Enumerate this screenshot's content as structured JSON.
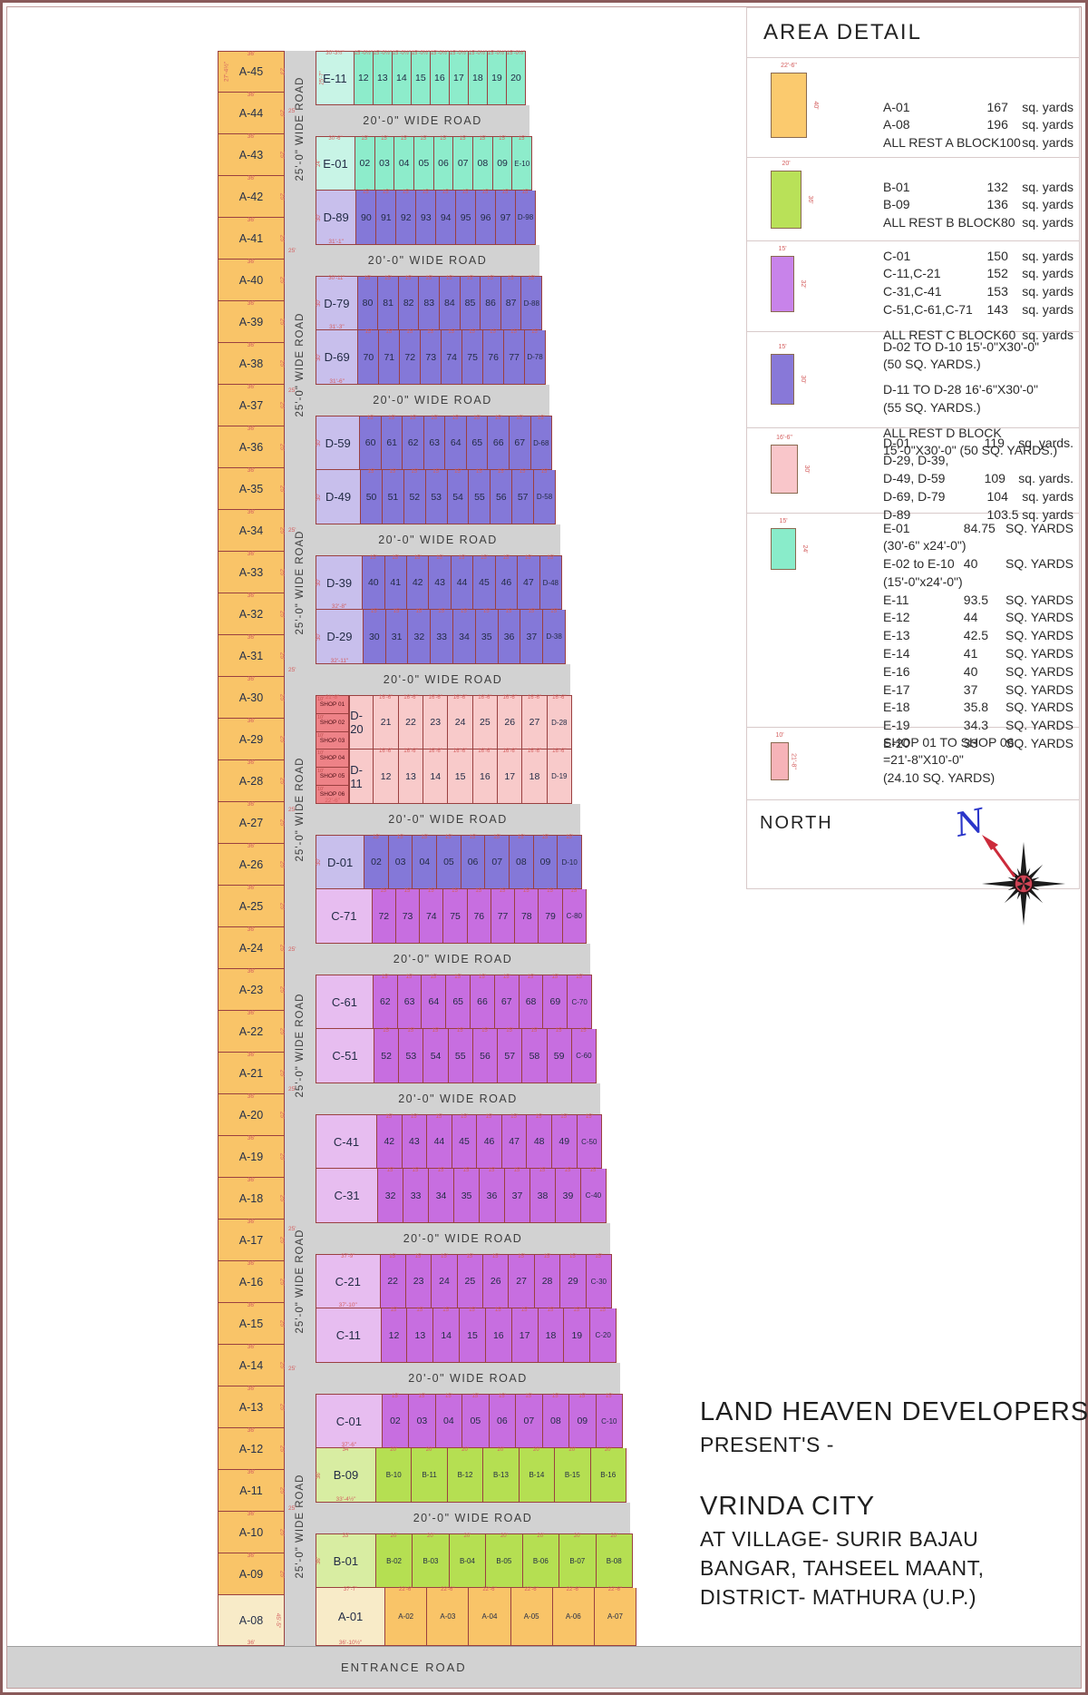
{
  "area_detail": {
    "title": "AREA DETAIL",
    "north_label": "NORTH",
    "sections": [
      {
        "name": "a-block",
        "color": "#fbca6e",
        "top_dim": "22'-6\"",
        "side_dim": "40'",
        "rows": [
          [
            "A-01",
            "167",
            "sq. yards"
          ],
          [
            "A-08",
            "196",
            "sq. yards"
          ],
          [
            "ALL REST A BLOCK",
            "100",
            "sq. yards"
          ]
        ]
      },
      {
        "name": "b-block",
        "color": "#b9e158",
        "top_dim": "20'",
        "side_dim": "36'",
        "rows": [
          [
            "B-01",
            "132",
            "sq. yards"
          ],
          [
            "B-09",
            "136",
            "sq. yards"
          ],
          [
            "ALL REST B BLOCK",
            "80",
            "sq. yards"
          ]
        ]
      },
      {
        "name": "c-block",
        "color": "#c883ea",
        "top_dim": "15'",
        "side_dim": "32'",
        "rows": [
          [
            "C-01",
            "150",
            "sq. yards"
          ],
          [
            "C-11,C-21",
            "152",
            "sq. yards"
          ],
          [
            "C-31,C-41",
            "153",
            "sq. yards"
          ],
          [
            "C-51,C-61,C-71",
            "143",
            "sq. yards"
          ],
          [
            "",
            "",
            ""
          ],
          [
            "ALL REST C BLOCK",
            "60",
            "sq. yards"
          ]
        ]
      },
      {
        "name": "d-block",
        "color": "#8878d8",
        "top_dim": "15'",
        "side_dim": "30'",
        "rows": [
          [
            "D-02 TO D-10  15'-0\"X30'-0\"",
            "",
            ""
          ],
          [
            "(50 SQ. YARDS.)",
            "",
            ""
          ],
          [
            "",
            "",
            ""
          ],
          [
            "D-11 TO D-28  16'-6\"X30'-0\"",
            "",
            ""
          ],
          [
            "(55 SQ. YARDS.)",
            "",
            ""
          ],
          [
            "",
            "",
            ""
          ],
          [
            "ALL REST D BLOCK",
            "",
            ""
          ],
          [
            "15'-0\"X30'-0\"   (50 SQ. YARDS.)",
            "",
            ""
          ]
        ]
      },
      {
        "name": "d-pink",
        "color": "#f9c6ca",
        "top_dim": "16'-6\"",
        "side_dim": "30'",
        "rows": [
          [
            "D-01",
            "119",
            "sq. yards."
          ],
          [
            "D-29, D-39,",
            "",
            ""
          ],
          [
            "D-49, D-59",
            "109",
            "sq. yards."
          ],
          [
            "D-69, D-79",
            "104",
            "sq. yards"
          ],
          [
            "D-89",
            "103.5",
            "sq. yards"
          ]
        ]
      },
      {
        "name": "e-block",
        "color": "#89ecca",
        "top_dim": "15'",
        "side_dim": "24'",
        "rows": [
          [
            "E-01",
            "84.75",
            "SQ. YARDS"
          ],
          [
            "  (30'-6\"  x24'-0\")",
            "",
            ""
          ],
          [
            "E-02 to E-10",
            "40",
            "SQ. YARDS"
          ],
          [
            "  (15'-0\"x24'-0\")",
            "",
            ""
          ],
          [
            "E-11",
            "93.5",
            "SQ. YARDS"
          ],
          [
            "E-12",
            "44",
            "SQ. YARDS"
          ],
          [
            "E-13",
            "42.5",
            "SQ. YARDS"
          ],
          [
            "E-14",
            "41",
            "SQ. YARDS"
          ],
          [
            "E-16",
            "40",
            "SQ. YARDS"
          ],
          [
            "E-17",
            "37",
            "SQ. YARDS"
          ],
          [
            "E-18",
            "35.8",
            "SQ. YARDS"
          ],
          [
            "E-19",
            "34.3",
            "SQ. YARDS"
          ],
          [
            "E-20",
            "33",
            "SQ. YARDS"
          ]
        ]
      },
      {
        "name": "shops",
        "color": "#f6b3b8",
        "top_dim": "10'",
        "side_dim": "21'-8\"",
        "rows": [
          [
            "SHOP 01 TO SHOP 06",
            "",
            ""
          ],
          [
            "=21'-8\"X10'-0\"",
            "",
            ""
          ],
          [
            "(24.10 SQ. YARDS)",
            "",
            ""
          ]
        ]
      }
    ]
  },
  "map": {
    "h_road_label": "20'-0\" WIDE ROAD",
    "v_road_label": "25'-0\" WIDE ROAD",
    "entrance_label": "ENTRANCE ROAD",
    "junction_dim": "25'",
    "palettes": {
      "e": {
        "first": "#c8f4e6",
        "cell": "#8deccb"
      },
      "d": {
        "first": "#c8bfec",
        "cell": "#8478d8"
      },
      "c": {
        "first": "#e7bdf0",
        "cell": "#c76ee0"
      },
      "pink": {
        "first": "#f8caca",
        "cell": "#f8caca"
      },
      "b": {
        "first": "#d8eda2",
        "cell": "#b5df52"
      },
      "aRow": {
        "first": "#f8ebc8",
        "cell": "#f9c468"
      },
      "shop": "#ee8287"
    },
    "a_column": {
      "top_dim": "36'",
      "side_dim": "25'",
      "a45_side": "23'",
      "a45_left": "27'-4½\"",
      "labels": [
        "A-45",
        "A-44",
        "A-43",
        "A-42",
        "A-41",
        "A-40",
        "A-39",
        "A-38",
        "A-37",
        "A-36",
        "A-35",
        "A-34",
        "A-33",
        "A-32",
        "A-31",
        "A-30",
        "A-29",
        "A-28",
        "A-27",
        "A-26",
        "A-25",
        "A-24",
        "A-23",
        "A-22",
        "A-21",
        "A-20",
        "A-19",
        "A-18",
        "A-17",
        "A-16",
        "A-15",
        "A-14",
        "A-13",
        "A-12",
        "A-11",
        "A-10",
        "A-09"
      ],
      "last": {
        "label": "A-08",
        "side_dim": "45'-5\"",
        "bottom_dim": "36'"
      }
    },
    "blocks": [
      {
        "kind": "rows",
        "rows": [
          {
            "first": "E-11",
            "cells": [
              "12",
              "13",
              "14",
              "15",
              "16",
              "17",
              "18",
              "19",
              "20"
            ],
            "palette": "e",
            "first_ft": 30.5,
            "cell_ft": 15,
            "top_dim": "30'-3½\"",
            "cell_dim": "15'-0½\"",
            "side_dim": "25'-7\""
          }
        ]
      },
      {
        "kind": "road"
      },
      {
        "kind": "rows",
        "rows": [
          {
            "first": "E-01",
            "cells": [
              "02",
              "03",
              "04",
              "05",
              "06",
              "07",
              "08",
              "09",
              "E-10"
            ],
            "palette": "e",
            "first_ft": 30.5,
            "cell_ft": 15,
            "top_dim": "30'-6\"",
            "cell_dim": "15'",
            "side_dim": "24'"
          },
          {
            "first": "D-89",
            "cells": [
              "90",
              "91",
              "92",
              "93",
              "94",
              "95",
              "96",
              "97",
              "D-98"
            ],
            "palette": "d",
            "first_ft": 31,
            "cell_ft": 15,
            "cell_dim": "15'",
            "bottom_dim": "31'-1\"",
            "side_dim": "30'"
          }
        ]
      },
      {
        "kind": "road"
      },
      {
        "kind": "rows",
        "rows": [
          {
            "first": "D-79",
            "cells": [
              "80",
              "81",
              "82",
              "83",
              "84",
              "85",
              "86",
              "87",
              "D-88"
            ],
            "palette": "d",
            "first_ft": 31,
            "cell_ft": 15,
            "top_dim": "30'-11\"",
            "cell_dim": "15'",
            "bottom_dim": "31'-3\"",
            "side_dim": "30'"
          },
          {
            "first": "D-69",
            "cells": [
              "70",
              "71",
              "72",
              "73",
              "74",
              "75",
              "76",
              "77",
              "D-78"
            ],
            "palette": "d",
            "first_ft": 31,
            "cell_ft": 15,
            "cell_dim": "15'",
            "bottom_dim": "31'-6\"",
            "side_dim": "30'"
          }
        ]
      },
      {
        "kind": "road"
      },
      {
        "kind": "rows",
        "rows": [
          {
            "first": "D-59",
            "cells": [
              "60",
              "61",
              "62",
              "63",
              "64",
              "65",
              "66",
              "67",
              "D-68"
            ],
            "palette": "d",
            "first_ft": 31.5,
            "cell_ft": 15,
            "cell_dim": "15'",
            "side_dim": "30'"
          },
          {
            "first": "D-49",
            "cells": [
              "50",
              "51",
              "52",
              "53",
              "54",
              "55",
              "56",
              "57",
              "D-58"
            ],
            "palette": "d",
            "first_ft": 31.5,
            "cell_ft": 15,
            "cell_dim": "15'",
            "side_dim": "30'"
          }
        ]
      },
      {
        "kind": "road"
      },
      {
        "kind": "rows",
        "rows": [
          {
            "first": "D-39",
            "cells": [
              "40",
              "41",
              "42",
              "43",
              "44",
              "45",
              "46",
              "47",
              "D-48"
            ],
            "palette": "d",
            "first_ft": 32,
            "cell_ft": 15,
            "cell_dim": "15'",
            "bottom_dim": "32'-8\"",
            "side_dim": "30'"
          },
          {
            "first": "D-29",
            "cells": [
              "30",
              "31",
              "32",
              "33",
              "34",
              "35",
              "36",
              "37",
              "D-38"
            ],
            "palette": "d",
            "first_ft": 32,
            "cell_ft": 15,
            "cell_dim": "15'",
            "bottom_dim": "32'-11\"",
            "side_dim": "30'"
          }
        ]
      },
      {
        "kind": "road"
      },
      {
        "kind": "shops",
        "shops": [
          "SHOP 01",
          "SHOP 02",
          "SHOP 03",
          "SHOP 04",
          "SHOP 05",
          "SHOP 06"
        ],
        "top_dim": "21'-8\"",
        "bottom_dim": "22'-6\"",
        "side_dim": "10'",
        "shop_ft": 22.5,
        "rows": [
          {
            "first": "D-20",
            "cells": [
              "21",
              "22",
              "23",
              "24",
              "25",
              "26",
              "27",
              "D-28"
            ],
            "palette": "pink",
            "first_ft": 16.5,
            "cell_ft": 16.5,
            "cell_dim": "16'-6\""
          },
          {
            "first": "D-11",
            "cells": [
              "12",
              "13",
              "14",
              "15",
              "16",
              "17",
              "18",
              "D-19"
            ],
            "palette": "pink",
            "first_ft": 16.5,
            "cell_ft": 16.5,
            "cell_dim": "16'-6\""
          }
        ]
      },
      {
        "kind": "road"
      },
      {
        "kind": "rows",
        "rows": [
          {
            "first": "D-01",
            "cells": [
              "02",
              "03",
              "04",
              "05",
              "06",
              "07",
              "08",
              "09",
              "D-10"
            ],
            "palette": "d",
            "first_ft": 30.5,
            "cell_ft": 15,
            "cell_dim": "15'",
            "side_dim": "30'"
          },
          {
            "first": "C-71",
            "cells": [
              "72",
              "73",
              "74",
              "75",
              "76",
              "77",
              "78",
              "79",
              "C-80"
            ],
            "palette": "c",
            "first_ft": 35.8,
            "cell_ft": 15,
            "cell_dim": "15'"
          }
        ]
      },
      {
        "kind": "road"
      },
      {
        "kind": "rows",
        "rows": [
          {
            "first": "C-61",
            "cells": [
              "62",
              "63",
              "64",
              "65",
              "66",
              "67",
              "68",
              "69",
              "C-70"
            ],
            "palette": "c",
            "first_ft": 35.8,
            "cell_ft": 15,
            "cell_dim": "15'"
          },
          {
            "first": "C-51",
            "cells": [
              "52",
              "53",
              "54",
              "55",
              "56",
              "57",
              "58",
              "59",
              "C-60"
            ],
            "palette": "c",
            "first_ft": 35.8,
            "cell_ft": 15,
            "cell_dim": "15'"
          }
        ]
      },
      {
        "kind": "road"
      },
      {
        "kind": "rows",
        "rows": [
          {
            "first": "C-41",
            "cells": [
              "42",
              "43",
              "44",
              "45",
              "46",
              "47",
              "48",
              "49",
              "C-50"
            ],
            "palette": "c",
            "first_ft": 37,
            "cell_ft": 15,
            "cell_dim": "15'"
          },
          {
            "first": "C-31",
            "cells": [
              "32",
              "33",
              "34",
              "35",
              "36",
              "37",
              "38",
              "39",
              "C-40"
            ],
            "palette": "c",
            "first_ft": 37,
            "cell_ft": 15,
            "cell_dim": "15'"
          }
        ]
      },
      {
        "kind": "road"
      },
      {
        "kind": "rows",
        "rows": [
          {
            "first": "C-21",
            "cells": [
              "22",
              "23",
              "24",
              "25",
              "26",
              "27",
              "28",
              "29",
              "C-30"
            ],
            "palette": "c",
            "first_ft": 37.8,
            "cell_ft": 15,
            "top_dim": "37'-9\"",
            "cell_dim": "15'",
            "bottom_dim": "37'-10\""
          },
          {
            "first": "C-11",
            "cells": [
              "12",
              "13",
              "14",
              "15",
              "16",
              "17",
              "18",
              "19",
              "C-20"
            ],
            "palette": "c",
            "first_ft": 37.8,
            "cell_ft": 15,
            "cell_dim": "15'"
          }
        ]
      },
      {
        "kind": "road"
      },
      {
        "kind": "rows",
        "rows": [
          {
            "first": "C-01",
            "cells": [
              "02",
              "03",
              "04",
              "05",
              "06",
              "07",
              "08",
              "09",
              "C-10"
            ],
            "palette": "c",
            "first_ft": 37.5,
            "cell_ft": 15,
            "cell_dim": "15'",
            "bottom_dim": "37'-6\""
          },
          {
            "first": "B-09",
            "cells": [
              "B-10",
              "B-11",
              "B-12",
              "B-13",
              "B-14",
              "B-15",
              "B-16"
            ],
            "palette": "b",
            "first_ft": 34,
            "cell_ft": 20,
            "top_dim": "34'",
            "cell_dim": "20'",
            "bottom_dim": "33'-4½\"",
            "side_dim": "36'"
          }
        ]
      },
      {
        "kind": "road"
      },
      {
        "kind": "rows",
        "rows": [
          {
            "first": "B-01",
            "cells": [
              "B-02",
              "B-03",
              "B-04",
              "B-05",
              "B-06",
              "B-07",
              "B-08"
            ],
            "palette": "b",
            "first_ft": 33,
            "cell_ft": 20,
            "top_dim": "33'",
            "cell_dim": "20'",
            "side_dim": "36'"
          },
          {
            "first": "A-01",
            "cells": [
              "A-02",
              "A-03",
              "A-04",
              "A-05",
              "A-06",
              "A-07"
            ],
            "palette": "aRow",
            "first_ft": 37.6,
            "cell_ft": 22.5,
            "top_dim": "37'-7\"",
            "cell_dim": "22'-6\"",
            "bottom_dim": "36'-10½\""
          }
        ]
      }
    ]
  },
  "footer": {
    "lines": [
      "LAND HEAVEN DEVELOPERS",
      "PRESENT'S -",
      "VRINDA CITY",
      "AT VILLAGE- SURIR BAJAU",
      "BANGAR, TAHSEEL MAANT,",
      "DISTRICT- MATHURA (U.P.)"
    ]
  }
}
